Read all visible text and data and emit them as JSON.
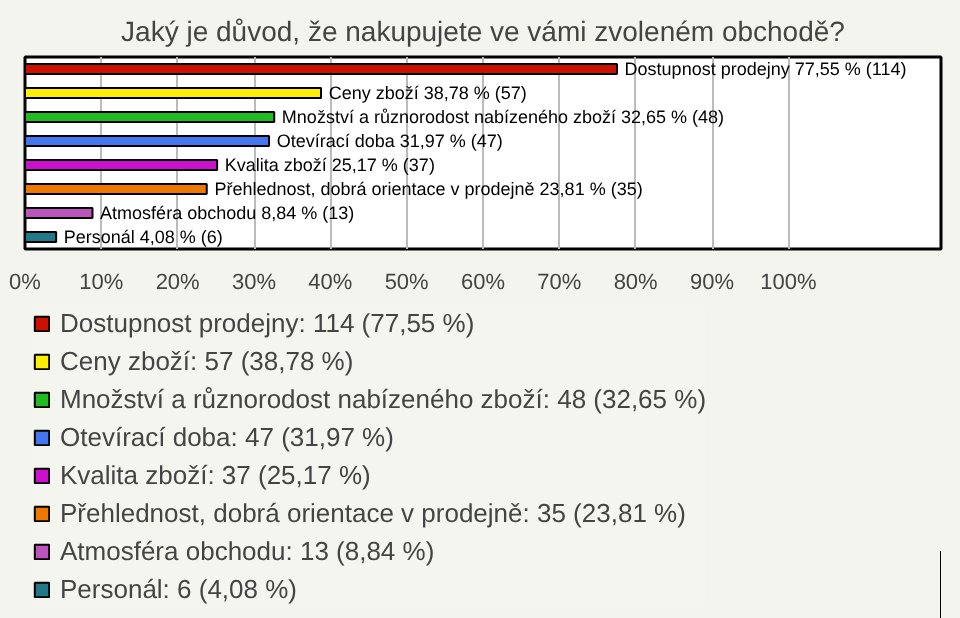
{
  "chart_data": {
    "type": "bar",
    "orientation": "horizontal",
    "title": "Jaký je důvod, že nakupujete ve vámi zvoleném obchodě?",
    "categories": [
      "Dostupnost prodejny 77,55 % (114)",
      "Ceny zboží 38,78 % (57)",
      "Množství a různorodost nabízeného zboží 32,65 % (48)",
      "Otevírací doba 31,97 % (47)",
      "Kvalita zboží 25,17 % (37)",
      "Přehlednost, dobrá orientace v prodejně 23,81 % (35)",
      "Atmosféra obchodu 8,84 % (13)",
      "Personál 4,08 % (6)"
    ],
    "series": [
      {
        "name": "Dostupnost prodejny: 114 (77,55 %)",
        "color": "#cc1100",
        "values": [
          77.55,
          null,
          null,
          null,
          null,
          null,
          null,
          null
        ]
      },
      {
        "name": "Ceny zboží: 57 (38,78 %)",
        "color": "#ffee00",
        "values": [
          null,
          38.78,
          null,
          null,
          null,
          null,
          null,
          null
        ]
      },
      {
        "name": "Množství a různorodost nabízeného zboží: 48 (32,65 %)",
        "color": "#22bb22",
        "values": [
          null,
          null,
          32.65,
          null,
          null,
          null,
          null,
          null
        ]
      },
      {
        "name": "Otevírací doba: 47 (31,97 %)",
        "color": "#4477ee",
        "values": [
          null,
          null,
          null,
          31.97,
          null,
          null,
          null,
          null
        ]
      },
      {
        "name": "Kvalita zboží: 37 (25,17 %)",
        "color": "#cc11cc",
        "values": [
          null,
          null,
          null,
          null,
          25.17,
          null,
          null,
          null
        ]
      },
      {
        "name": "Přehlednost, dobrá orientace v prodejně: 35 (23,81 %)",
        "color": "#ee7700",
        "values": [
          null,
          null,
          null,
          null,
          null,
          23.81,
          null,
          null
        ]
      },
      {
        "name": "Atmosféra obchodu: 13 (8,84 %)",
        "color": "#bb55bb",
        "values": [
          null,
          null,
          null,
          null,
          null,
          null,
          8.84,
          null
        ]
      },
      {
        "name": "Personál: 6 (4,08 %)",
        "color": "#227788",
        "values": [
          null,
          null,
          null,
          null,
          null,
          null,
          null,
          4.08
        ]
      }
    ],
    "xlim": [
      0,
      120
    ],
    "xticks": [
      {
        "value": 0,
        "label": "0%"
      },
      {
        "value": 10,
        "label": "10%"
      },
      {
        "value": 20,
        "label": "20%"
      },
      {
        "value": 30,
        "label": "30%"
      },
      {
        "value": 40,
        "label": "40%"
      },
      {
        "value": 50,
        "label": "50%"
      },
      {
        "value": 60,
        "label": "60%"
      },
      {
        "value": 70,
        "label": "70%"
      },
      {
        "value": 80,
        "label": "80%"
      },
      {
        "value": 90,
        "label": "90%"
      },
      {
        "value": 100,
        "label": "100%"
      }
    ],
    "grid": "x",
    "legend": "bottom"
  }
}
